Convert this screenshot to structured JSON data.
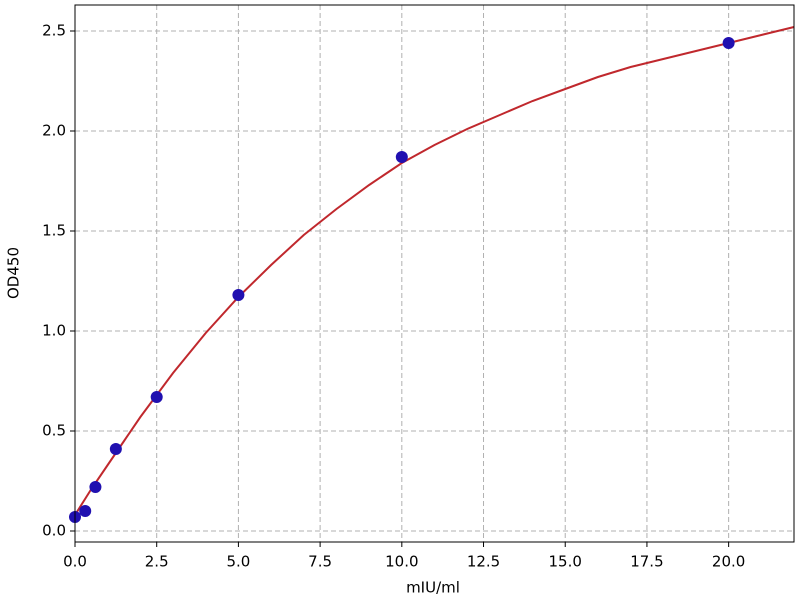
{
  "chart_data": {
    "type": "scatter",
    "x_label": "mIU/ml",
    "y_label": "OD450",
    "xlim": [
      0,
      22
    ],
    "ylim": [
      -0.055,
      2.63
    ],
    "xticks": [
      {
        "value": 0,
        "label": "0.0"
      },
      2.5,
      {
        "value": 5,
        "label": "5.0"
      },
      7.5,
      {
        "value": 10,
        "label": "10.0"
      },
      12.5,
      {
        "value": 15,
        "label": "15.0"
      },
      17.5,
      {
        "value": 20,
        "label": "20.0"
      }
    ],
    "yticks": [
      {
        "value": 0,
        "label": "0.0"
      },
      0.5,
      {
        "value": 1,
        "label": "1.0"
      },
      1.5,
      {
        "value": 2,
        "label": "2.0"
      },
      2.5
    ],
    "grid": true,
    "series": [
      {
        "type": "line",
        "color": "#c0282d",
        "x": [
          0,
          0.5,
          1,
          1.5,
          2,
          3,
          4,
          5,
          6,
          7,
          8,
          9,
          10,
          11,
          12,
          13,
          14,
          15,
          16,
          17,
          18,
          19,
          20,
          21,
          22
        ],
        "values": [
          0.08,
          0.21,
          0.33,
          0.45,
          0.57,
          0.79,
          0.99,
          1.17,
          1.33,
          1.48,
          1.61,
          1.73,
          1.84,
          1.93,
          2.01,
          2.08,
          2.15,
          2.21,
          2.27,
          2.32,
          2.36,
          2.4,
          2.44,
          2.48,
          2.52
        ]
      },
      {
        "type": "scatter",
        "color": "#2010b0",
        "x": [
          0,
          0.3125,
          0.625,
          1.25,
          2.5,
          5,
          10,
          20
        ],
        "values": [
          0.07,
          0.1,
          0.22,
          0.41,
          0.67,
          1.18,
          1.87,
          2.44
        ]
      }
    ]
  }
}
